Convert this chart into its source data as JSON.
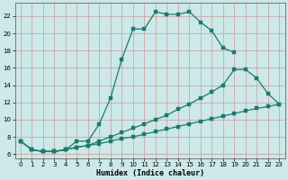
{
  "xlabel": "Humidex (Indice chaleur)",
  "bg_color": "#cce8e8",
  "grid_color": "#cc9999",
  "line_color": "#1a7a6e",
  "xlim": [
    -0.5,
    23.5
  ],
  "ylim": [
    5.5,
    23.5
  ],
  "xticks": [
    0,
    1,
    2,
    3,
    4,
    5,
    6,
    7,
    8,
    9,
    10,
    11,
    12,
    13,
    14,
    15,
    16,
    17,
    18,
    19,
    20,
    21,
    22,
    23
  ],
  "yticks": [
    6,
    8,
    10,
    12,
    14,
    16,
    18,
    20,
    22
  ],
  "curve1_x": [
    0,
    1,
    2,
    3,
    4,
    5,
    6,
    7,
    8,
    9,
    10,
    11,
    12,
    13,
    14,
    15,
    16,
    17,
    18,
    19
  ],
  "curve1_y": [
    7.5,
    6.5,
    6.3,
    6.3,
    6.5,
    7.5,
    7.5,
    9.5,
    12.5,
    17.0,
    20.5,
    20.5,
    22.5,
    22.2,
    22.2,
    22.5,
    21.3,
    20.3,
    18.3,
    17.8
  ],
  "curve2_x": [
    0,
    1,
    2,
    3,
    4,
    5,
    6,
    7,
    8,
    9,
    10,
    11,
    12,
    13,
    14,
    15,
    16,
    17,
    18,
    19,
    20,
    21,
    22,
    23
  ],
  "curve2_y": [
    7.5,
    6.5,
    6.3,
    6.3,
    6.5,
    6.8,
    7.0,
    7.5,
    8.0,
    8.5,
    9.0,
    9.5,
    10.0,
    10.5,
    11.2,
    11.8,
    12.5,
    13.2,
    14.0,
    15.8,
    15.8,
    14.8,
    13.0,
    11.8
  ],
  "curve3_x": [
    0,
    1,
    2,
    3,
    4,
    5,
    6,
    7,
    8,
    9,
    10,
    11,
    12,
    13,
    14,
    15,
    16,
    17,
    18,
    19,
    20,
    21,
    22,
    23
  ],
  "curve3_y": [
    7.5,
    6.5,
    6.3,
    6.3,
    6.5,
    6.8,
    7.0,
    7.2,
    7.5,
    7.8,
    8.0,
    8.3,
    8.6,
    8.9,
    9.2,
    9.5,
    9.8,
    10.1,
    10.4,
    10.7,
    11.0,
    11.3,
    11.5,
    11.8
  ]
}
